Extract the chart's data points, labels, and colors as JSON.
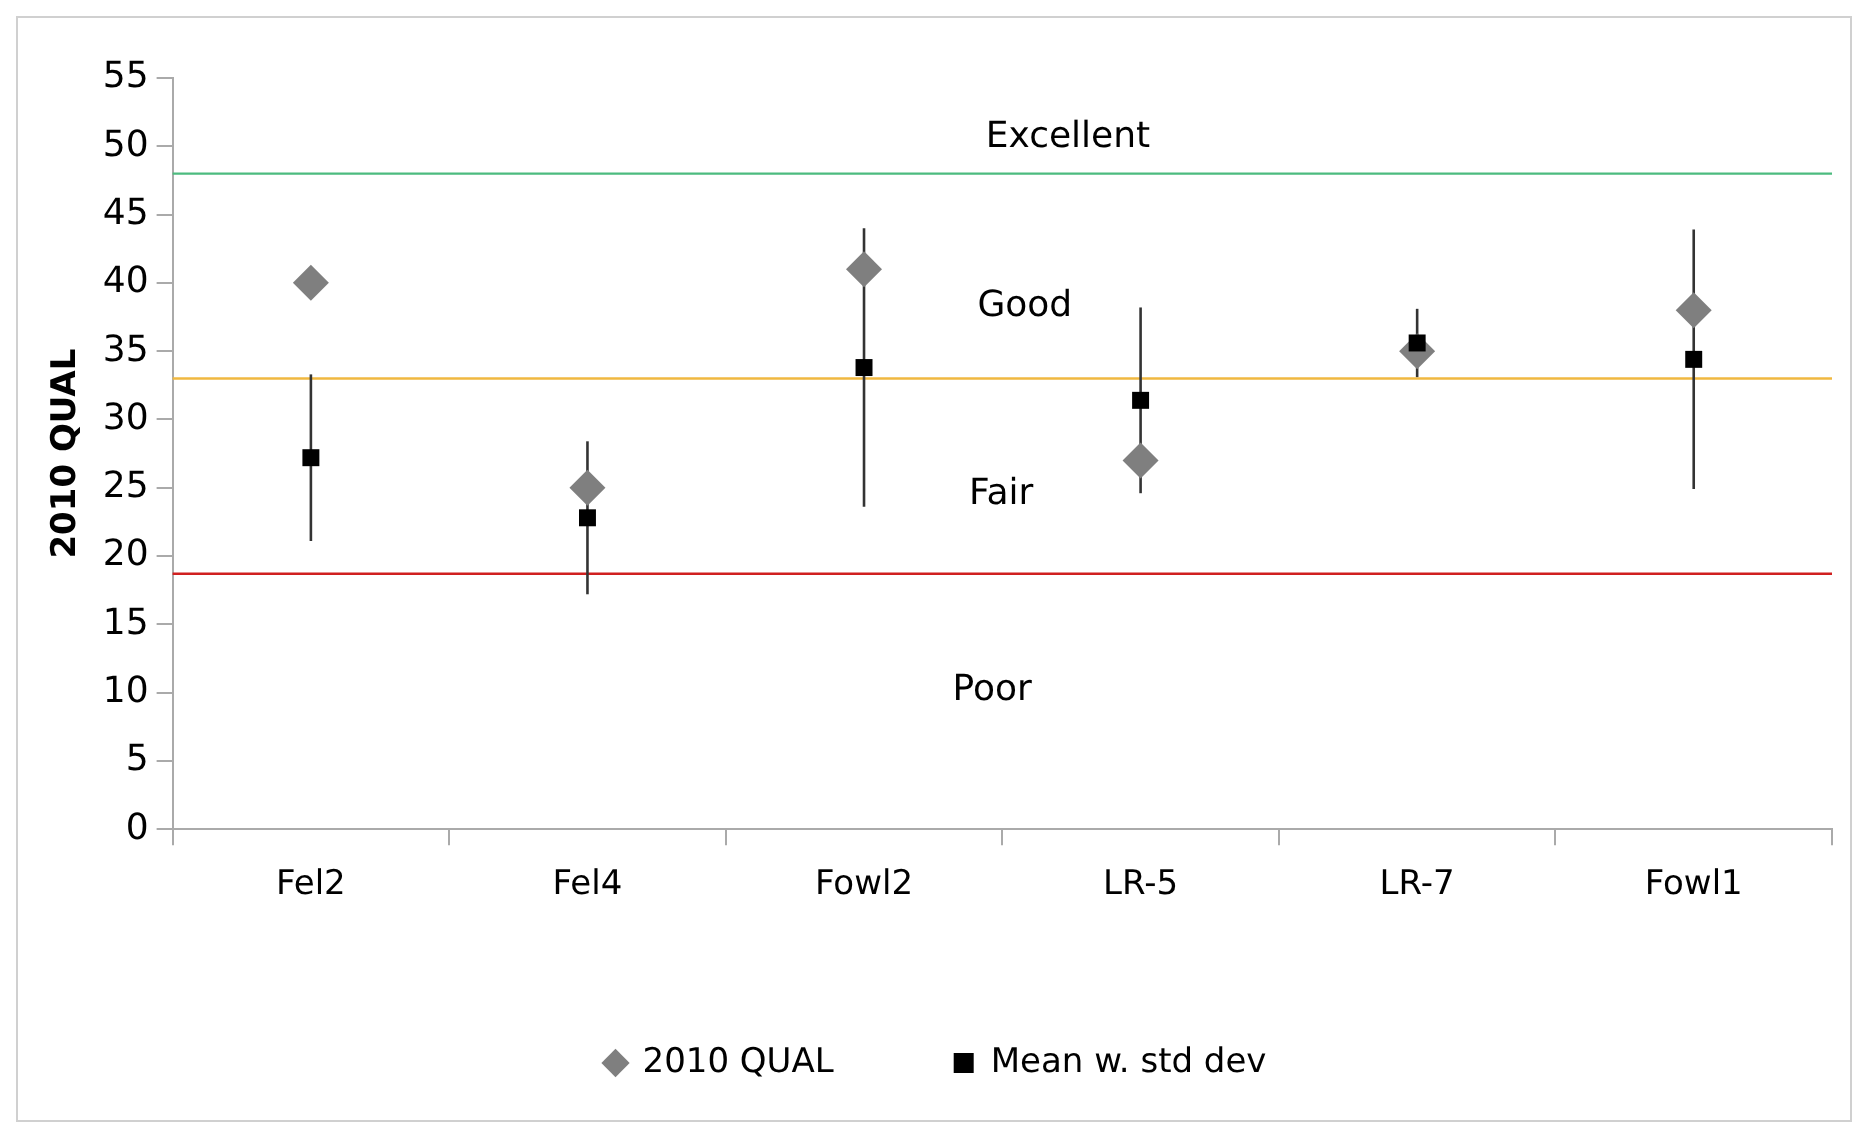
{
  "chart_data": {
    "type": "scatter",
    "ylabel": "2010 QUAL",
    "categories": [
      "Fel2",
      "Fel4",
      "Fowl2",
      "LR-5",
      "LR-7",
      "Fowl1"
    ],
    "series": [
      {
        "name": "2010 QUAL",
        "color": "#7f7f7f",
        "marker": "diamond",
        "values": [
          40,
          25,
          41,
          27,
          35,
          38
        ]
      },
      {
        "name": "Mean w. std dev",
        "color": "#000000",
        "marker": "square",
        "values": [
          27.2,
          22.8,
          33.8,
          31.4,
          35.6,
          34.4
        ],
        "errors": [
          6.1,
          5.6,
          10.2,
          6.8,
          2.5,
          9.5
        ]
      }
    ],
    "ylim": [
      0,
      55
    ],
    "yticks": [
      0,
      5,
      10,
      15,
      20,
      25,
      30,
      35,
      40,
      45,
      50,
      55
    ],
    "ref_lines": [
      {
        "axis": "y",
        "value": 48,
        "color": "#4cbb7f"
      },
      {
        "axis": "y",
        "value": 33,
        "color": "#f0b840"
      },
      {
        "axis": "y",
        "value": 18.7,
        "color": "#d02020"
      }
    ],
    "annotations": [
      "Excellent",
      "Good",
      "Fair",
      "Poor"
    ],
    "grid": false,
    "legend": "bottom"
  }
}
